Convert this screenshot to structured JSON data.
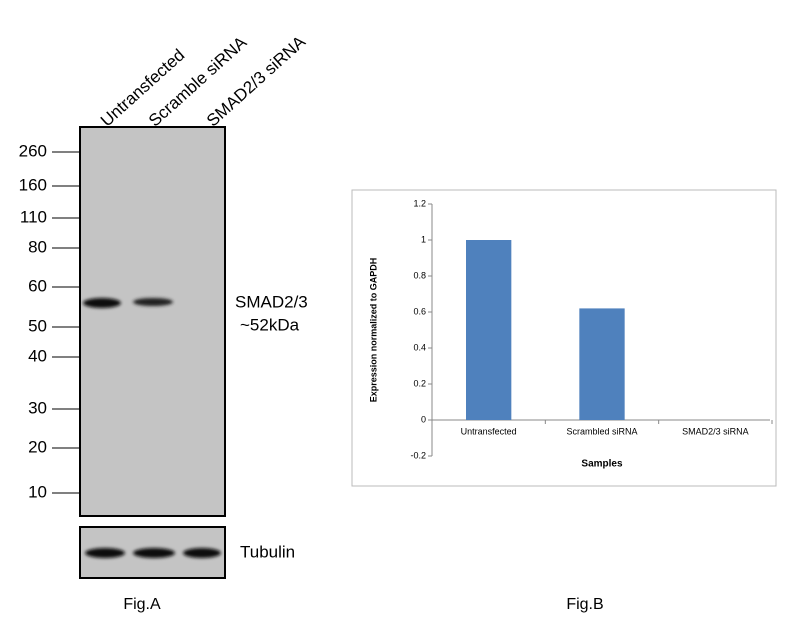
{
  "blot": {
    "lanes": [
      "Untransfected",
      "Scramble siRNA",
      "SMAD2/3 siRNA"
    ],
    "markers": [
      "260",
      "160",
      "110",
      "80",
      "60",
      "50",
      "40",
      "30",
      "20",
      "10"
    ],
    "band_label": "SMAD2/3",
    "band_size": "~52kDa",
    "loading_control": "Tubulin",
    "caption": "Fig.A"
  },
  "caption_b": "Fig.B",
  "chart_data": {
    "type": "bar",
    "categories": [
      "Untransfected",
      "Scrambled siRNA",
      "SMAD2/3 siRNA"
    ],
    "values": [
      1,
      0.62,
      0
    ],
    "color": "#4f81bd",
    "xlabel": "Samples",
    "ylabel": "Expression normalized to GAPDH",
    "ylim": [
      -0.2,
      1.2
    ],
    "yticks": [
      -0.2,
      0,
      0.2,
      0.4,
      0.6,
      0.8,
      1,
      1.2
    ],
    "grid": false
  }
}
